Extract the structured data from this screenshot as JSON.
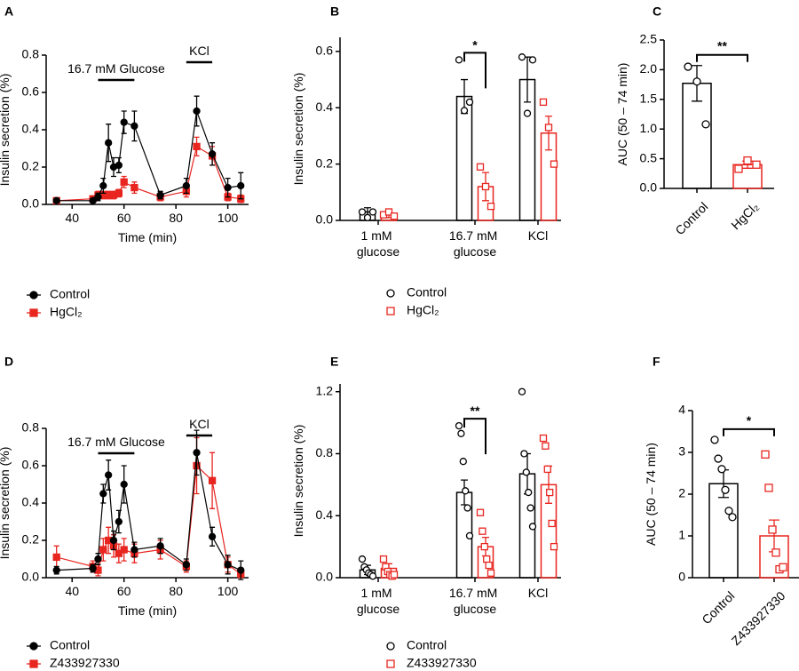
{
  "chart_data": [
    {
      "type": "line",
      "label": "A",
      "xlabel": "Time (min)",
      "ylabel": "Insulin secretion (%)",
      "x": [
        34,
        48,
        50,
        52,
        54,
        56,
        58,
        60,
        64,
        74,
        84,
        88,
        94,
        100,
        105
      ],
      "xlim": [
        30,
        108
      ],
      "xticks": [
        40,
        60,
        80,
        100
      ],
      "ylim": [
        0,
        0.8
      ],
      "yticks": [
        {
          "value": 0,
          "label": "0.0"
        },
        {
          "value": 0.2,
          "label": "0.2"
        },
        {
          "value": 0.4,
          "label": "0.4"
        },
        {
          "value": 0.6,
          "label": "0.6"
        },
        {
          "value": 0.8,
          "label": "0.8"
        }
      ],
      "periods": [
        {
          "label": "16.7 mM Glucose",
          "start": 50,
          "end": 64
        },
        {
          "label": "KCl",
          "start": 84,
          "end": 94
        }
      ],
      "series": [
        {
          "name": "Control",
          "color": "#000000",
          "marker": "circle",
          "values": [
            0.02,
            0.02,
            0.04,
            0.1,
            0.33,
            0.2,
            0.21,
            0.44,
            0.42,
            0.05,
            0.1,
            0.5,
            0.27,
            0.09,
            0.1
          ],
          "errors": [
            0.01,
            0.01,
            0.02,
            0.04,
            0.1,
            0.05,
            0.04,
            0.06,
            0.08,
            0.02,
            0.04,
            0.08,
            0.06,
            0.05,
            0.07
          ]
        },
        {
          "name": "HgCl₂",
          "color": "#e8251f",
          "marker": "square",
          "values": [
            0.02,
            0.03,
            0.05,
            0.05,
            0.05,
            0.05,
            0.06,
            0.12,
            0.09,
            0.04,
            0.07,
            0.31,
            0.26,
            0.04,
            0.03
          ],
          "errors": [
            0.01,
            0.01,
            0.02,
            0.02,
            0.02,
            0.02,
            0.02,
            0.03,
            0.03,
            0.02,
            0.03,
            0.05,
            0.05,
            0.02,
            0.02
          ]
        }
      ]
    },
    {
      "type": "grouped_bar",
      "label": "B",
      "ylabel": "Insulin secretion (%)",
      "categories": [
        "1 mM glucose",
        "16.7 mM glucose",
        "KCl"
      ],
      "ylim": [
        0,
        0.65
      ],
      "yticks": [
        {
          "value": 0,
          "label": "0.0"
        },
        {
          "value": 0.2,
          "label": "0.2"
        },
        {
          "value": 0.4,
          "label": "0.4"
        },
        {
          "value": 0.6,
          "label": "0.6"
        }
      ],
      "significance": "*",
      "series": [
        {
          "name": "Control",
          "color": "#000000",
          "marker": "circle",
          "values": [
            0.03,
            0.44,
            0.5
          ],
          "errors": [
            0.015,
            0.06,
            0.08
          ],
          "points": [
            [
              0.03,
              0.01,
              0.03
            ],
            [
              0.57,
              0.39,
              0.42
            ],
            [
              0.58,
              0.38,
              0.57
            ]
          ]
        },
        {
          "name": "HgCl₂",
          "color": "#e8251f",
          "marker": "square",
          "values": [
            0.02,
            0.12,
            0.31
          ],
          "errors": [
            0.01,
            0.05,
            0.06
          ],
          "points": [
            [
              0.02,
              0.03,
              0.015
            ],
            [
              0.19,
              0.12,
              0.05
            ],
            [
              0.42,
              0.33,
              0.2
            ]
          ]
        }
      ]
    },
    {
      "type": "bar",
      "label": "C",
      "ylabel": "AUC (50 – 74 min)",
      "categories": [
        "Control",
        "HgCl₂"
      ],
      "colors": [
        "#000000",
        "#e8251f"
      ],
      "markers": [
        "circle",
        "square"
      ],
      "values": [
        1.77,
        0.4
      ],
      "errors": [
        0.3,
        0.06
      ],
      "points": [
        [
          2.05,
          1.8,
          1.08
        ],
        [
          0.33,
          0.47,
          0.4
        ]
      ],
      "ylim": [
        0,
        2.5
      ],
      "yticks": [
        {
          "value": 0,
          "label": "0.0"
        },
        {
          "value": 0.5,
          "label": "0.5"
        },
        {
          "value": 1,
          "label": "1.0"
        },
        {
          "value": 1.5,
          "label": "1.5"
        },
        {
          "value": 2,
          "label": "2.0"
        },
        {
          "value": 2.5,
          "label": "2.5"
        }
      ],
      "significance": "**"
    },
    {
      "type": "line",
      "label": "D",
      "xlabel": "Time (min)",
      "ylabel": "Insulin secretion (%)",
      "x": [
        34,
        48,
        50,
        52,
        54,
        56,
        58,
        60,
        64,
        74,
        84,
        88,
        94,
        100,
        105
      ],
      "xlim": [
        30,
        108
      ],
      "xticks": [
        40,
        60,
        80,
        100
      ],
      "ylim": [
        0,
        0.8
      ],
      "yticks": [
        {
          "value": 0,
          "label": "0.0"
        },
        {
          "value": 0.2,
          "label": "0.2"
        },
        {
          "value": 0.4,
          "label": "0.4"
        },
        {
          "value": 0.6,
          "label": "0.6"
        },
        {
          "value": 0.8,
          "label": "0.8"
        }
      ],
      "periods": [
        {
          "label": "16.7 mM Glucose",
          "start": 50,
          "end": 64
        },
        {
          "label": "KCl",
          "start": 84,
          "end": 94
        }
      ],
      "series": [
        {
          "name": "Control",
          "color": "#000000",
          "marker": "circle",
          "values": [
            0.04,
            0.05,
            0.1,
            0.45,
            0.55,
            0.2,
            0.3,
            0.5,
            0.15,
            0.17,
            0.07,
            0.67,
            0.22,
            0.07,
            0.04
          ],
          "errors": [
            0.02,
            0.02,
            0.03,
            0.05,
            0.08,
            0.05,
            0.06,
            0.1,
            0.04,
            0.04,
            0.03,
            0.12,
            0.05,
            0.05,
            0.05
          ]
        },
        {
          "name": "Z433927330",
          "color": "#e8251f",
          "marker": "square",
          "values": [
            0.11,
            0.06,
            0.04,
            0.15,
            0.2,
            0.17,
            0.13,
            0.15,
            0.13,
            0.15,
            0.06,
            0.6,
            0.52,
            0.07,
            0.02
          ],
          "errors": [
            0.06,
            0.03,
            0.03,
            0.06,
            0.07,
            0.06,
            0.05,
            0.06,
            0.05,
            0.05,
            0.03,
            0.15,
            0.15,
            0.04,
            0.02
          ]
        }
      ]
    },
    {
      "type": "grouped_bar",
      "label": "E",
      "ylabel": "Insulin secretion (%)",
      "categories": [
        "1 mM glucose",
        "16.7 mM glucose",
        "KCl"
      ],
      "ylim": [
        0,
        1.25
      ],
      "yticks": [
        {
          "value": 0,
          "label": "0.0"
        },
        {
          "value": 0.4,
          "label": "0.4"
        },
        {
          "value": 0.8,
          "label": "0.8"
        },
        {
          "value": 1.2,
          "label": "1.2"
        }
      ],
      "significance": "**",
      "series": [
        {
          "name": "Control",
          "color": "#000000",
          "marker": "circle",
          "values": [
            0.05,
            0.55,
            0.67
          ],
          "errors": [
            0.03,
            0.08,
            0.13
          ],
          "points": [
            [
              0.12,
              0.07,
              0.05,
              0.03,
              0.02,
              0.01
            ],
            [
              0.98,
              0.93,
              0.75,
              0.56,
              0.45,
              0.27
            ],
            [
              1.2,
              0.8,
              0.68,
              0.55,
              0.45,
              0.33
            ]
          ]
        },
        {
          "name": "Z433927330",
          "color": "#e8251f",
          "marker": "square",
          "values": [
            0.06,
            0.2,
            0.6
          ],
          "errors": [
            0.03,
            0.06,
            0.12
          ],
          "points": [
            [
              0.12,
              0.07,
              0.04,
              0.02,
              0.01,
              0.02
            ],
            [
              0.42,
              0.3,
              0.2,
              0.12,
              0.08,
              0.03
            ],
            [
              0.9,
              0.85,
              0.7,
              0.55,
              0.35,
              0.2
            ]
          ]
        }
      ]
    },
    {
      "type": "bar",
      "label": "F",
      "ylabel": "AUC (50 – 74 min)",
      "categories": [
        "Control",
        "Z433927330"
      ],
      "colors": [
        "#000000",
        "#e8251f"
      ],
      "markers": [
        "circle",
        "square"
      ],
      "values": [
        2.25,
        1.0
      ],
      "errors": [
        0.33,
        0.38
      ],
      "points": [
        [
          3.3,
          2.85,
          2.6,
          2.1,
          1.6,
          1.45
        ],
        [
          2.95,
          2.15,
          1.15,
          0.6,
          0.2,
          0.25
        ]
      ],
      "ylim": [
        0,
        4
      ],
      "yticks": [
        0,
        1,
        2,
        3,
        4
      ],
      "significance": "*"
    }
  ]
}
